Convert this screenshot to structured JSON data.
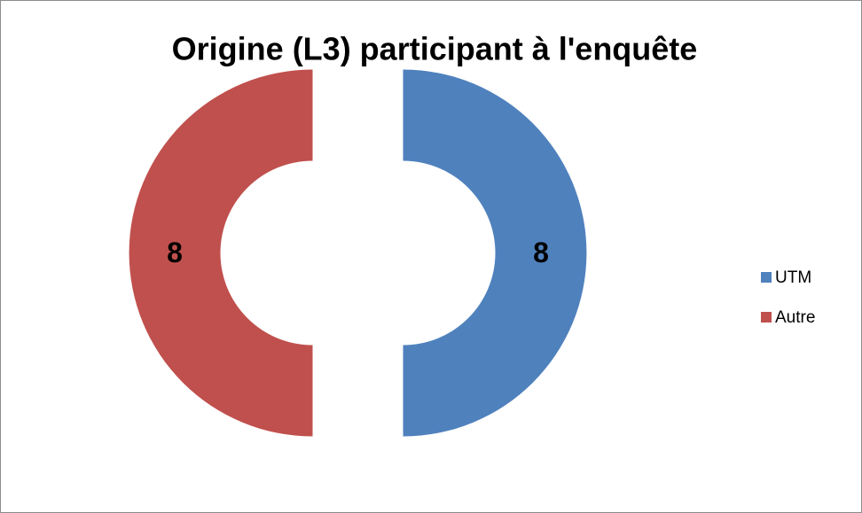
{
  "chart_data": {
    "type": "donut",
    "title": "Origine (L3) participant à l'enquête",
    "categories": [
      "UTM",
      "Autre"
    ],
    "values": [
      8,
      8
    ],
    "colors": [
      "#4f81bd",
      "#c0504d"
    ],
    "legend": "right",
    "exploded": true
  }
}
